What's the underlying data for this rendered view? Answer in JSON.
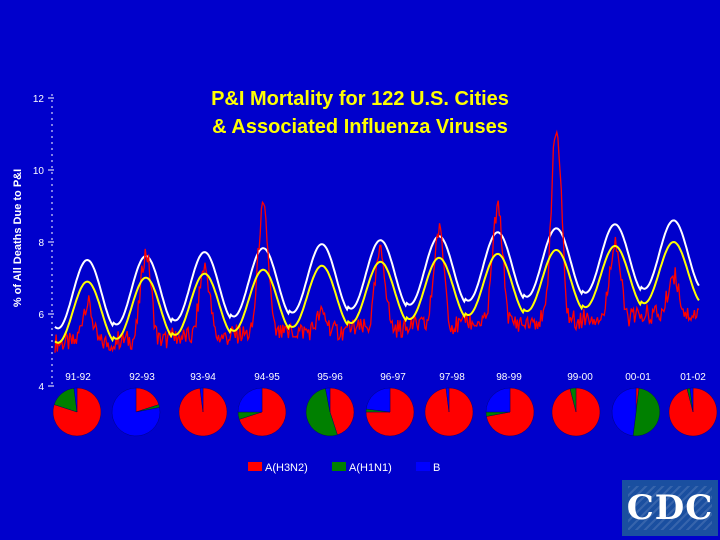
{
  "chart_data": {
    "type": "line",
    "title_lines": [
      "P&I Mortality for 122 U.S. Cities",
      "& Associated Influenza Viruses"
    ],
    "ylabel": "% of All Deaths Due to P&I",
    "ylim": [
      4,
      12
    ],
    "yticks": [
      "12",
      "10",
      "8",
      "6",
      "4"
    ],
    "seasons": [
      "91-92",
      "92-93",
      "93-94",
      "94-95",
      "95-96",
      "96-97",
      "97-98",
      "98-99",
      "99-00",
      "00-01",
      "01-02"
    ],
    "series": [
      {
        "values": [
          6.3,
          7.7,
          7.3,
          8.9,
          6.0,
          7.7,
          8.3,
          8.9,
          11.1,
          8.0,
          7.1
        ]
      },
      {
        "values": [
          7.8,
          7.1,
          6.8,
          7.1,
          7.3,
          7.4,
          7.6,
          7.9,
          8.0,
          8.1,
          8.1
        ]
      },
      {
        "values": [
          6.6,
          6.9,
          6.5,
          6.8,
          7.0,
          7.2,
          7.4,
          7.5,
          7.6,
          7.8,
          7.9
        ]
      }
    ],
    "virus_legend": [
      "A(H3N2)",
      "A(H1N1)",
      "B"
    ],
    "pies": [
      {
        "season": "91-92",
        "h3n2": 0.8,
        "h1n1": 0.18,
        "b": 0.02
      },
      {
        "season": "92-93",
        "h3n2": 0.2,
        "h1n1": 0.02,
        "b": 0.78
      },
      {
        "season": "93-94",
        "h3n2": 0.98,
        "h1n1": 0.0,
        "b": 0.02
      },
      {
        "season": "94-95",
        "h3n2": 0.7,
        "h1n1": 0.05,
        "b": 0.25
      },
      {
        "season": "95-96",
        "h3n2": 0.45,
        "h1n1": 0.52,
        "b": 0.03
      },
      {
        "season": "96-97",
        "h3n2": 0.75,
        "h1n1": 0.02,
        "b": 0.23
      },
      {
        "season": "97-98",
        "h3n2": 0.98,
        "h1n1": 0.0,
        "b": 0.02
      },
      {
        "season": "98-99",
        "h3n2": 0.72,
        "h1n1": 0.03,
        "b": 0.25
      },
      {
        "season": "99-00",
        "h3n2": 0.96,
        "h1n1": 0.04,
        "b": 0.0
      },
      {
        "season": "00-01",
        "h3n2": 0.02,
        "h1n1": 0.5,
        "b": 0.48
      },
      {
        "season": "01-02",
        "h3n2": 0.96,
        "h1n1": 0.02,
        "b": 0.02
      }
    ],
    "colors": {
      "background": "#0000cc",
      "observed": "#ff0000",
      "upper": "#ffffff",
      "baseline": "#ffff00",
      "h3n2": "#ff0000",
      "h1n1": "#008000",
      "b": "#0000ff",
      "title": "#ffff00",
      "axis_text": "#ffffff"
    }
  },
  "logo": {
    "text": "CDC"
  }
}
